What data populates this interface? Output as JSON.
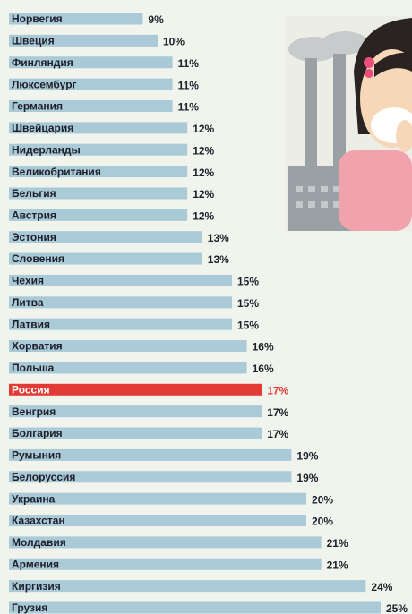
{
  "chart_data": {
    "type": "bar",
    "categories": [
      "Норвегия",
      "Швеция",
      "Финляндия",
      "Люксембург",
      "Германия",
      "Швейцария",
      "Нидерланды",
      "Великобритания",
      "Бельгия",
      "Австрия",
      "Эстония",
      "Словения",
      "Чехия",
      "Литва",
      "Латвия",
      "Хорватия",
      "Польша",
      "Россия",
      "Венгрия",
      "Болгария",
      "Румыния",
      "Белоруссия",
      "Украина",
      "Казахстан",
      "Молдавия",
      "Армения",
      "Киргизия",
      "Грузия"
    ],
    "values": [
      9,
      10,
      11,
      11,
      11,
      12,
      12,
      12,
      12,
      12,
      13,
      13,
      15,
      15,
      15,
      16,
      16,
      17,
      17,
      17,
      19,
      19,
      20,
      20,
      21,
      21,
      24,
      25
    ],
    "value_labels": [
      "9%",
      "10%",
      "11%",
      "11%",
      "11%",
      "12%",
      "12%",
      "12%",
      "12%",
      "12%",
      "13%",
      "13%",
      "15%",
      "15%",
      "15%",
      "16%",
      "16%",
      "17%",
      "17%",
      "17%",
      "19%",
      "19%",
      "20%",
      "20%",
      "21%",
      "21%",
      "24%",
      "25%"
    ],
    "colors": [
      "#a9cad6",
      "#a9cad6",
      "#a9cad6",
      "#a9cad6",
      "#a9cad6",
      "#a9cad6",
      "#a9cad6",
      "#a9cad6",
      "#a9cad6",
      "#a9cad6",
      "#a9cad6",
      "#a9cad6",
      "#a9cad6",
      "#a9cad6",
      "#a9cad6",
      "#a9cad6",
      "#a9cad6",
      "#e23b36",
      "#a9cad6",
      "#a9cad6",
      "#a9cad6",
      "#a9cad6",
      "#a9cad6",
      "#a9cad6",
      "#a9cad6",
      "#a9cad6",
      "#a9cad6",
      "#a9cad6"
    ]
  }
}
